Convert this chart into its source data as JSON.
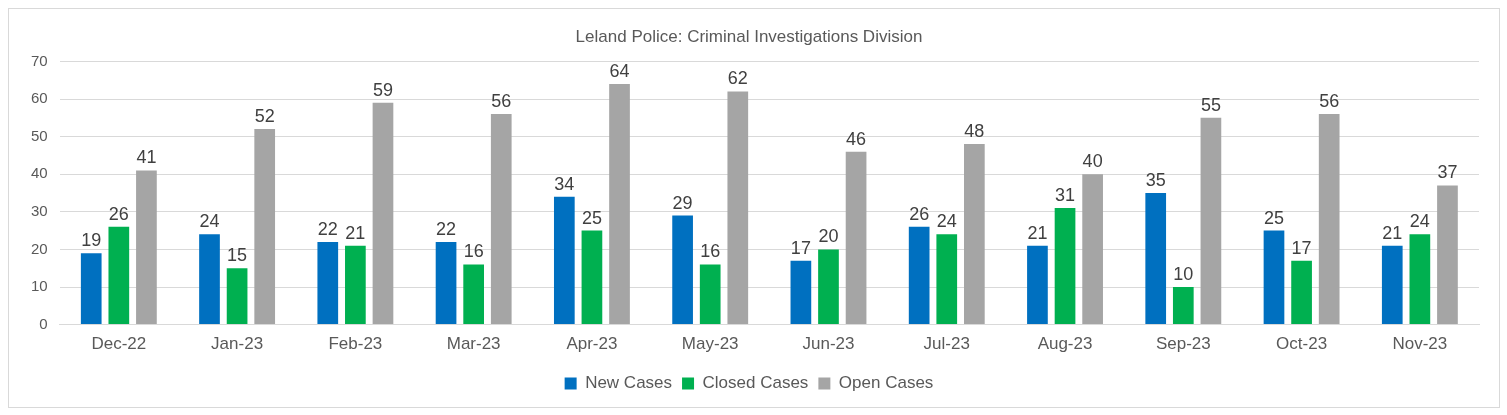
{
  "chart_data": {
    "type": "bar",
    "title": "Leland Police: Criminal Investigations Division",
    "categories": [
      "Dec-22",
      "Jan-23",
      "Feb-23",
      "Mar-23",
      "Apr-23",
      "May-23",
      "Jun-23",
      "Jul-23",
      "Aug-23",
      "Sep-23",
      "Oct-23",
      "Nov-23"
    ],
    "series": [
      {
        "name": "New Cases",
        "color": "#0070c0",
        "values": [
          19,
          24,
          22,
          22,
          34,
          29,
          17,
          26,
          21,
          35,
          25,
          21
        ]
      },
      {
        "name": "Closed Cases",
        "color": "#00b050",
        "values": [
          26,
          15,
          21,
          16,
          25,
          16,
          20,
          24,
          31,
          10,
          17,
          24
        ]
      },
      {
        "name": "Open Cases",
        "color": "#a5a5a5",
        "values": [
          41,
          52,
          59,
          56,
          64,
          62,
          46,
          48,
          40,
          55,
          56,
          37
        ]
      }
    ],
    "ylim": [
      0,
      70
    ],
    "yticks": [
      0,
      10,
      20,
      30,
      40,
      50,
      60,
      70
    ],
    "grid": "y",
    "legend": "bottom",
    "data_labels": true
  }
}
